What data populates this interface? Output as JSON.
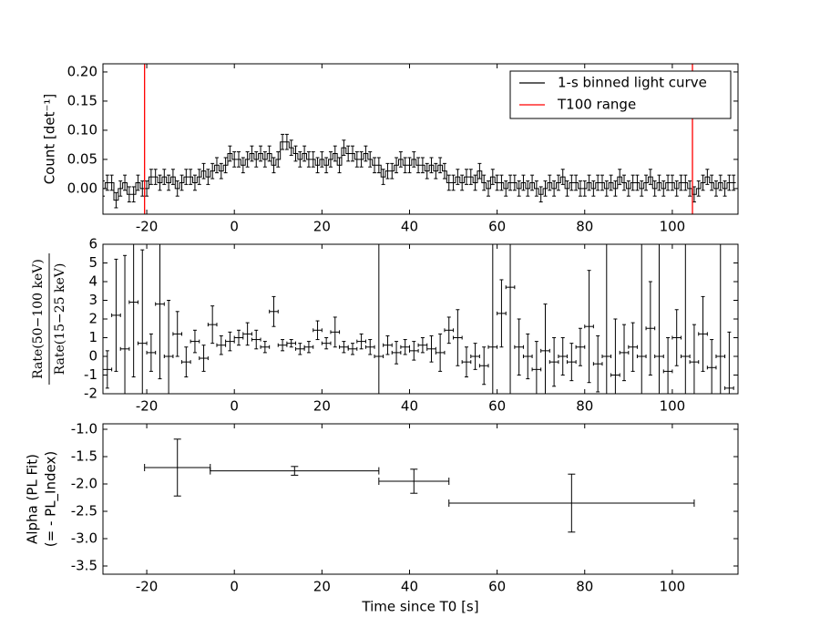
{
  "chart_data": [
    {
      "type": "step",
      "ylabel": "Count [det⁻¹]",
      "xlim": [
        -30,
        115
      ],
      "xticks": [
        -20,
        0,
        20,
        40,
        60,
        80,
        100
      ],
      "ylim": [
        -0.044,
        0.214
      ],
      "yticks": [
        {
          "value": 0,
          "label": "0.00"
        },
        {
          "value": 0.05,
          "label": "0.05"
        },
        {
          "value": 0.1,
          "label": "0.10"
        },
        {
          "value": 0.15,
          "label": "0.15"
        },
        {
          "value": 0.2,
          "label": "0.20"
        }
      ],
      "legend": "upper right",
      "x": [
        -30,
        -29,
        -28,
        -27,
        -26,
        -25,
        -24,
        -23,
        -22,
        -21,
        -20,
        -19,
        -18,
        -17,
        -16,
        -15,
        -14,
        -13,
        -12,
        -11,
        -10,
        -9,
        -8,
        -7,
        -6,
        -5,
        -4,
        -3,
        -2,
        -1,
        0,
        1,
        2,
        3,
        4,
        5,
        6,
        7,
        8,
        9,
        10,
        11,
        12,
        13,
        14,
        15,
        16,
        17,
        18,
        19,
        20,
        21,
        22,
        23,
        24,
        25,
        26,
        27,
        28,
        29,
        30,
        31,
        32,
        33,
        34,
        35,
        36,
        37,
        38,
        39,
        40,
        41,
        42,
        43,
        44,
        45,
        46,
        47,
        48,
        49,
        50,
        51,
        52,
        53,
        54,
        55,
        56,
        57,
        58,
        59,
        60,
        61,
        62,
        63,
        64,
        65,
        66,
        67,
        68,
        69,
        70,
        71,
        72,
        73,
        74,
        75,
        76,
        77,
        78,
        79,
        80,
        81,
        82,
        83,
        84,
        85,
        86,
        87,
        88,
        89,
        90,
        91,
        92,
        93,
        94,
        95,
        96,
        97,
        98,
        99,
        100,
        101,
        102,
        103,
        104,
        105,
        106,
        107,
        108,
        109,
        110,
        111,
        112,
        113,
        114
      ],
      "error": 0.013,
      "series": [
        {
          "name": "1-s binned light curve",
          "color": "#000000",
          "values": [
            0.0,
            0.01,
            0.01,
            -0.02,
            0.0,
            0.01,
            -0.01,
            -0.01,
            0.01,
            0.0,
            0.0,
            0.02,
            0.02,
            0.01,
            0.02,
            0.01,
            0.02,
            0.0,
            0.01,
            0.02,
            0.02,
            0.01,
            0.02,
            0.03,
            0.02,
            0.03,
            0.04,
            0.03,
            0.04,
            0.06,
            0.05,
            0.05,
            0.04,
            0.05,
            0.06,
            0.05,
            0.06,
            0.05,
            0.06,
            0.04,
            0.05,
            0.08,
            0.08,
            0.07,
            0.06,
            0.05,
            0.06,
            0.05,
            0.05,
            0.04,
            0.05,
            0.04,
            0.05,
            0.06,
            0.04,
            0.07,
            0.06,
            0.06,
            0.05,
            0.05,
            0.06,
            0.05,
            0.04,
            0.04,
            0.02,
            0.03,
            0.03,
            0.04,
            0.05,
            0.04,
            0.04,
            0.05,
            0.04,
            0.04,
            0.03,
            0.04,
            0.03,
            0.04,
            0.03,
            0.01,
            0.01,
            0.02,
            0.01,
            0.02,
            0.02,
            0.01,
            0.03,
            0.01,
            0.0,
            0.02,
            0.01,
            0.01,
            0.0,
            0.01,
            0.01,
            0.0,
            0.01,
            0.0,
            0.01,
            0.0,
            -0.01,
            0.0,
            0.01,
            0.0,
            0.01,
            0.02,
            0.0,
            0.01,
            0.01,
            0.0,
            0.0,
            0.01,
            0.0,
            0.01,
            0.01,
            0.0,
            0.01,
            0.0,
            0.02,
            0.01,
            0.0,
            0.01,
            0.01,
            0.0,
            0.01,
            0.02,
            0.0,
            0.01,
            0.0,
            0.01,
            0.01,
            0.0,
            0.01,
            0.01,
            0.0,
            -0.01,
            0.0,
            0.01,
            0.02,
            0.01,
            0.0,
            0.01,
            0.0,
            0.01,
            0.01
          ]
        }
      ],
      "vlines": {
        "name": "T100 range",
        "color": "#ff0000",
        "x": [
          -20.5,
          104.6
        ]
      }
    },
    {
      "type": "errorbar",
      "ylabel": {
        "numerator": "Rate(50−100 keV)",
        "denominator": "Rate(15−25 keV)"
      },
      "xlim": [
        -30,
        115
      ],
      "xticks": [
        -20,
        0,
        20,
        40,
        60,
        80,
        100
      ],
      "ylim": [
        -2,
        6
      ],
      "yticks": [
        -2,
        -1,
        0,
        1,
        2,
        3,
        4,
        5,
        6
      ],
      "xerr": 1,
      "color": "#000000",
      "x": [
        -29,
        -27,
        -25,
        -23,
        -21,
        -19,
        -17,
        -15,
        -13,
        -11,
        -9,
        -7,
        -5,
        -3,
        -1,
        1,
        3,
        5,
        7,
        9,
        11,
        13,
        15,
        17,
        19,
        21,
        23,
        25,
        27,
        29,
        31,
        33,
        35,
        37,
        39,
        41,
        43,
        45,
        47,
        49,
        51,
        53,
        55,
        57,
        59,
        61,
        63,
        65,
        67,
        69,
        71,
        73,
        75,
        77,
        79,
        81,
        83,
        85,
        87,
        89,
        91,
        93,
        95,
        97,
        99,
        101,
        103,
        105,
        107,
        109,
        111,
        113
      ],
      "values": [
        -0.7,
        2.2,
        0.4,
        2.9,
        0.7,
        0.2,
        2.8,
        0.0,
        1.2,
        -0.3,
        0.8,
        -0.1,
        1.7,
        0.6,
        0.8,
        1.0,
        1.2,
        0.9,
        0.5,
        2.4,
        0.6,
        0.7,
        0.4,
        0.5,
        1.4,
        0.7,
        1.3,
        0.5,
        0.4,
        0.8,
        0.5,
        0.0,
        0.6,
        0.2,
        0.5,
        0.3,
        0.6,
        0.4,
        0.2,
        1.4,
        1.0,
        -0.3,
        0.0,
        -0.5,
        0.5,
        2.3,
        3.7,
        0.5,
        0.0,
        -0.7,
        0.3,
        -0.3,
        0.0,
        -0.3,
        0.5,
        1.6,
        -0.4,
        0.0,
        -1.0,
        0.2,
        0.5,
        0.0,
        1.5,
        0.0,
        -0.8,
        1.0,
        0.0,
        -0.3,
        1.2,
        -0.6,
        0.0,
        -1.7
      ],
      "errors": [
        1.0,
        3.0,
        5,
        4,
        5,
        1.0,
        4,
        3,
        1.2,
        0.8,
        0.6,
        0.7,
        1.0,
        0.5,
        0.5,
        0.4,
        0.6,
        0.5,
        0.3,
        0.8,
        0.3,
        0.2,
        0.3,
        0.3,
        0.5,
        0.3,
        0.8,
        0.3,
        0.3,
        0.4,
        0.4,
        8,
        0.5,
        0.6,
        0.4,
        0.5,
        0.4,
        0.7,
        1.0,
        0.7,
        1.5,
        0.8,
        0.7,
        1.0,
        6,
        1.8,
        6,
        1.5,
        1.2,
        1.5,
        2.5,
        1.3,
        1.0,
        1.0,
        1.0,
        3,
        1.5,
        6,
        3,
        1.5,
        1.3,
        6,
        2.5,
        6,
        1.8,
        1.5,
        6,
        2.0,
        2.0,
        1.5,
        6,
        3
      ]
    },
    {
      "type": "errorbar",
      "ylabel": [
        "Alpha (PL Fit)",
        "(= - PL_Index)"
      ],
      "xlabel": "Time since T0 [s]",
      "xlim": [
        -30,
        115
      ],
      "xticks": [
        -20,
        0,
        20,
        40,
        60,
        80,
        100
      ],
      "ylim": [
        -3.65,
        -0.9
      ],
      "yticks": [
        {
          "value": -1,
          "label": "-1.0"
        },
        -1.5,
        {
          "value": -2,
          "label": "-2.0"
        },
        -2.5,
        {
          "value": -3,
          "label": "-3.0"
        },
        -3.5
      ],
      "color": "#000000",
      "x": [
        -13,
        13.75,
        41,
        77
      ],
      "xerr": [
        7.5,
        19.25,
        8,
        28
      ],
      "values": [
        -1.7,
        -1.76,
        -1.95,
        -2.35
      ],
      "errors": [
        0.52,
        0.08,
        0.22,
        0.53
      ]
    }
  ]
}
